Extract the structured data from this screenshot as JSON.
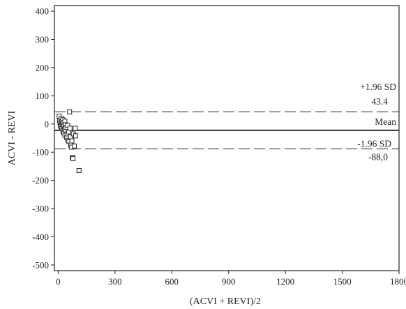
{
  "chart_data": {
    "type": "scatter",
    "title": "",
    "xlabel": "(ACVI + REVI)/2",
    "ylabel": "ACVI - REVI",
    "xlim": [
      -20,
      1800
    ],
    "ylim": [
      -520,
      420
    ],
    "xticks": [
      0,
      300,
      600,
      900,
      1200,
      1500,
      1800
    ],
    "yticks": [
      400,
      300,
      200,
      100,
      0,
      -100,
      -200,
      -300,
      -400,
      -500
    ],
    "grid": false,
    "marker": "open-square",
    "points": [
      [
        5,
        28
      ],
      [
        8,
        12
      ],
      [
        10,
        3
      ],
      [
        12,
        -5
      ],
      [
        14,
        -10
      ],
      [
        16,
        20
      ],
      [
        18,
        8
      ],
      [
        20,
        -15
      ],
      [
        22,
        -2
      ],
      [
        24,
        15
      ],
      [
        25,
        -25
      ],
      [
        27,
        5
      ],
      [
        30,
        -8
      ],
      [
        30,
        -32
      ],
      [
        33,
        -18
      ],
      [
        35,
        10
      ],
      [
        36,
        -40
      ],
      [
        38,
        -3
      ],
      [
        40,
        -22
      ],
      [
        42,
        -12
      ],
      [
        45,
        -48
      ],
      [
        47,
        -35
      ],
      [
        50,
        -5
      ],
      [
        52,
        -58
      ],
      [
        55,
        -28
      ],
      [
        57,
        -62
      ],
      [
        60,
        43
      ],
      [
        62,
        -15
      ],
      [
        65,
        -45
      ],
      [
        66,
        -75
      ],
      [
        70,
        -82
      ],
      [
        72,
        -60
      ],
      [
        75,
        -118
      ],
      [
        78,
        -123
      ],
      [
        80,
        -35
      ],
      [
        85,
        -78
      ],
      [
        90,
        -15
      ],
      [
        92,
        -42
      ],
      [
        110,
        -165
      ]
    ],
    "lines": [
      {
        "name": "+1.96 SD",
        "value": 43.4,
        "value_label": "43.4",
        "style": "dashed"
      },
      {
        "name": "Mean",
        "value": -22.3,
        "value_label": "",
        "style": "solid"
      },
      {
        "name": "-1.96 SD",
        "value": -88.0,
        "value_label": "-88,0",
        "style": "dashed"
      }
    ]
  }
}
